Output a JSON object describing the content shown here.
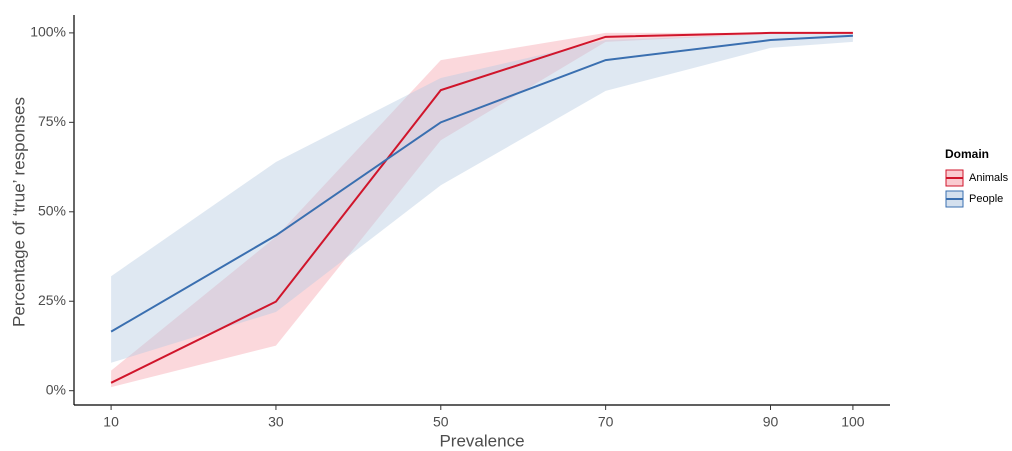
{
  "chart_data": {
    "type": "ribbon-line",
    "x_label": "Prevalence",
    "y_label": "Percentage of ‘true’ responses",
    "x": [
      10,
      30,
      50,
      70,
      90,
      100
    ],
    "xlim": [
      5.5,
      104.5
    ],
    "xticks": [
      10,
      30,
      50,
      70,
      90,
      100
    ],
    "ylim": [
      -4,
      105
    ],
    "yticks": [
      {
        "value": 0,
        "label": "0%"
      },
      {
        "value": 25,
        "label": "25%"
      },
      {
        "value": 50,
        "label": "50%"
      },
      {
        "value": 75,
        "label": "75%"
      },
      {
        "value": 100,
        "label": "100%"
      }
    ],
    "legend": "right",
    "legend_title": "Domain",
    "series": [
      {
        "name": "Animals",
        "color": "#d0152b",
        "fill": "#f6a9b1",
        "values": [
          2.2,
          24.9,
          84,
          98.9,
          100,
          100
        ],
        "lower": [
          1,
          12.6,
          70,
          97.5,
          99.7,
          99.7
        ],
        "upper": [
          5.6,
          43,
          92.4,
          100,
          100,
          100
        ]
      },
      {
        "name": "People",
        "color": "#3a6fb0",
        "fill": "#b7cbe3",
        "values": [
          16.5,
          43.4,
          75,
          92.4,
          98,
          99.2
        ],
        "lower": [
          7.8,
          22,
          57.4,
          83.8,
          95.8,
          97.5
        ],
        "upper": [
          32,
          63.9,
          87.4,
          98,
          99.7,
          99.7
        ]
      }
    ]
  }
}
